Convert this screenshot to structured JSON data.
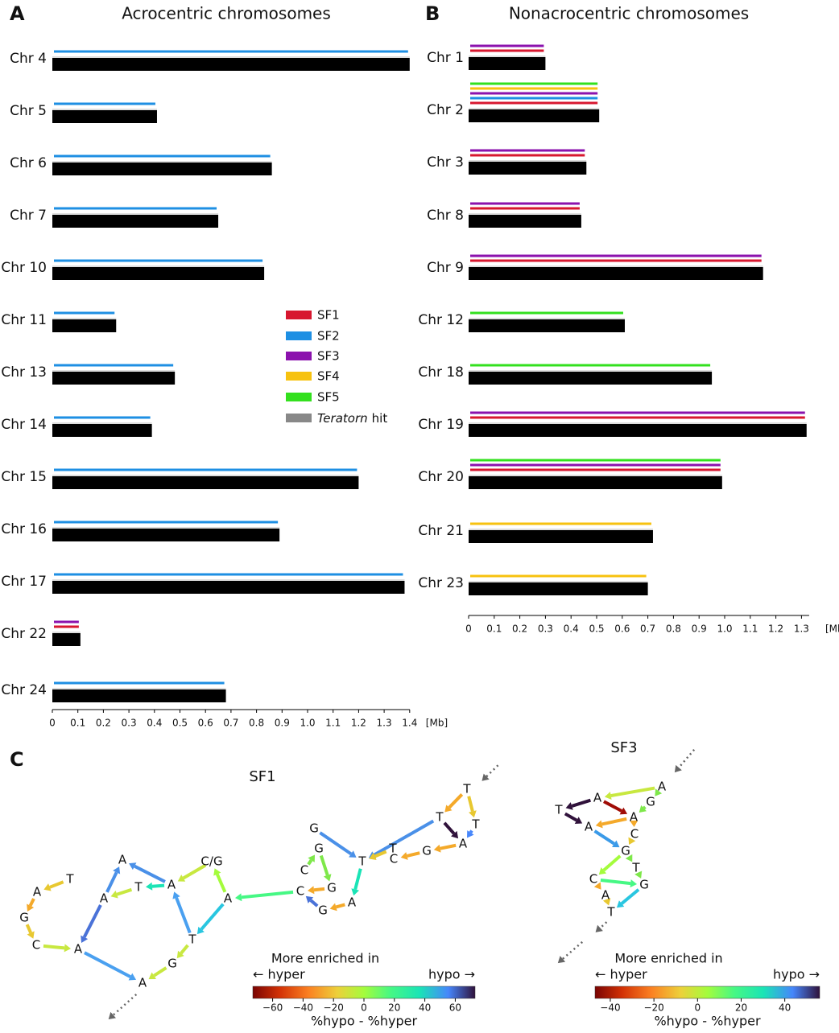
{
  "panel_a": {
    "label": "A",
    "title": "Acrocentric chromosomes",
    "chromosomes": [
      {
        "name": "Chr 4",
        "length": 1.4,
        "tracks": [
          "#1e8fe3"
        ]
      },
      {
        "name": "Chr 5",
        "length": 0.41,
        "tracks": [
          "#1e8fe3"
        ]
      },
      {
        "name": "Chr 6",
        "length": 0.86,
        "tracks": [
          "#1e8fe3"
        ]
      },
      {
        "name": "Chr 7",
        "length": 0.65,
        "tracks": [
          "#1e8fe3"
        ]
      },
      {
        "name": "Chr 10",
        "length": 0.83,
        "tracks": [
          "#1e8fe3"
        ]
      },
      {
        "name": "Chr 11",
        "length": 0.25,
        "tracks": [
          "#1e8fe3"
        ]
      },
      {
        "name": "Chr 13",
        "length": 0.48,
        "tracks": [
          "#1e8fe3"
        ]
      },
      {
        "name": "Chr 14",
        "length": 0.39,
        "tracks": [
          "#1e8fe3"
        ]
      },
      {
        "name": "Chr 15",
        "length": 1.2,
        "tracks": [
          "#1e8fe3"
        ]
      },
      {
        "name": "Chr 16",
        "length": 0.89,
        "tracks": [
          "#1e8fe3"
        ]
      },
      {
        "name": "Chr 17",
        "length": 1.38,
        "tracks": [
          "#1e8fe3"
        ]
      },
      {
        "name": "Chr 22",
        "length": 0.11,
        "tracks": [
          "#8b12ad",
          "#d7172f"
        ]
      },
      {
        "name": "Chr 24",
        "length": 0.68,
        "tracks": [
          "#1e8fe3"
        ]
      }
    ],
    "xlim": [
      0,
      1.4
    ],
    "xticks": [
      0,
      0.1,
      0.2,
      0.3,
      0.4,
      0.5,
      0.6,
      0.7,
      0.8,
      0.9,
      {
        "value": 1,
        "label": "1.0"
      },
      1.1,
      1.2,
      1.3,
      1.4
    ],
    "unit": "[Mb]"
  },
  "panel_b": {
    "label": "B",
    "title": "Nonacrocentric chromosomes",
    "chromosomes": [
      {
        "name": "Chr 1",
        "length": 0.3,
        "tracks": [
          "#8b12ad",
          "#d7172f"
        ]
      },
      {
        "name": "Chr 2",
        "length": 0.51,
        "tracks": [
          "#33e01e",
          "#f7c20f",
          "#8b12ad",
          "#1e8fe3",
          "#d7172f"
        ]
      },
      {
        "name": "Chr 3",
        "length": 0.46,
        "tracks": [
          "#8b12ad",
          "#d7172f"
        ]
      },
      {
        "name": "Chr 8",
        "length": 0.44,
        "tracks": [
          "#8b12ad",
          "#d7172f"
        ]
      },
      {
        "name": "Chr 9",
        "length": 1.15,
        "tracks": [
          "#8b12ad",
          "#d7172f"
        ]
      },
      {
        "name": "Chr 12",
        "length": 0.61,
        "tracks": [
          "#33e01e"
        ]
      },
      {
        "name": "Chr 18",
        "length": 0.95,
        "tracks": [
          "#33e01e"
        ]
      },
      {
        "name": "Chr 19",
        "length": 1.32,
        "tracks": [
          "#8b12ad",
          "#d7172f"
        ]
      },
      {
        "name": "Chr 20",
        "length": 0.99,
        "tracks": [
          "#33e01e",
          "#8b12ad",
          "#d7172f"
        ]
      },
      {
        "name": "Chr 21",
        "length": 0.72,
        "tracks": [
          "#f7c20f"
        ]
      },
      {
        "name": "Chr 23",
        "length": 0.7,
        "tracks": [
          "#f7c20f"
        ]
      }
    ],
    "xlim": [
      0,
      1.33
    ],
    "xticks": [
      0,
      0.1,
      0.2,
      0.3,
      0.4,
      0.5,
      0.6,
      0.7,
      0.8,
      0.9,
      {
        "value": 1,
        "label": "1.0"
      },
      1.1,
      1.2,
      1.3
    ],
    "unit": "[Mb]"
  },
  "legend": [
    {
      "label": "SF1",
      "color": "#d7172f"
    },
    {
      "label": "SF2",
      "color": "#1e8fe3"
    },
    {
      "label": "SF3",
      "color": "#8b12ad"
    },
    {
      "label": "SF4",
      "color": "#f7c20f"
    },
    {
      "label": "SF5",
      "color": "#33e01e"
    },
    {
      "label": [
        "Teratorn",
        "hit"
      ],
      "color": "#888888"
    }
  ],
  "panel_c": {
    "label": "C",
    "networks": [
      {
        "title": "SF1",
        "nodes": [
          "A",
          "T",
          "A",
          "G",
          "C",
          "A",
          "A",
          "T",
          "A",
          "C/G",
          "A",
          "T",
          "G",
          "A",
          "C",
          "G",
          "A",
          "G",
          "C",
          "G",
          "G",
          "T",
          "T",
          "C",
          "G",
          "A",
          "T",
          "T",
          "T"
        ],
        "colorbar": {
          "caption": "More enriched in",
          "left": "← hyper",
          "right": "hypo →",
          "axis_label": "%hypo - %hyper",
          "lim": [
            -73,
            73
          ],
          "ticks": [
            {
              "value": -60,
              "label": "−60"
            },
            {
              "value": -40,
              "label": "−40"
            },
            {
              "value": -20,
              "label": "−20"
            },
            0,
            20,
            40,
            60
          ]
        }
      },
      {
        "title": "SF3",
        "nodes": [
          "A",
          "G",
          "A",
          "T",
          "A",
          "A",
          "C",
          "G",
          "T",
          "C",
          "G",
          "A",
          "T"
        ],
        "colorbar": {
          "caption": "More enriched in",
          "left": "← hyper",
          "right": "hypo →",
          "axis_label": "%hypo - %hyper",
          "lim": [
            -47,
            56
          ],
          "ticks": [
            {
              "value": -40,
              "label": "−40"
            },
            {
              "value": -20,
              "label": "−20"
            },
            0,
            20,
            40
          ]
        }
      }
    ]
  }
}
